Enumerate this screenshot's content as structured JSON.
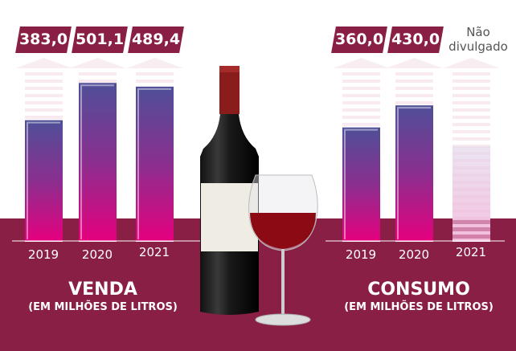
{
  "chart_data": [
    {
      "type": "bar",
      "title": "VENDA",
      "subtitle": "(EM MILHÕES DE LITROS)",
      "categories": [
        "2019",
        "2020",
        "2021"
      ],
      "values": [
        383.0,
        501.1,
        489.4
      ],
      "labels": [
        "383,0",
        "501,1",
        "489,4"
      ],
      "ylim": [
        0,
        540
      ]
    },
    {
      "type": "bar",
      "title": "CONSUMO",
      "subtitle": "(EM MILHÕES DE LITROS)",
      "categories": [
        "2019",
        "2020",
        "2021"
      ],
      "values": [
        360.0,
        430.0,
        null
      ],
      "labels": [
        "360,0",
        "430,0",
        "Não divulgado"
      ],
      "ylim": [
        0,
        540
      ]
    }
  ],
  "colors": {
    "band": "#8a1f45",
    "bar_top": "#4f4f98",
    "bar_bottom": "#e6007e"
  }
}
